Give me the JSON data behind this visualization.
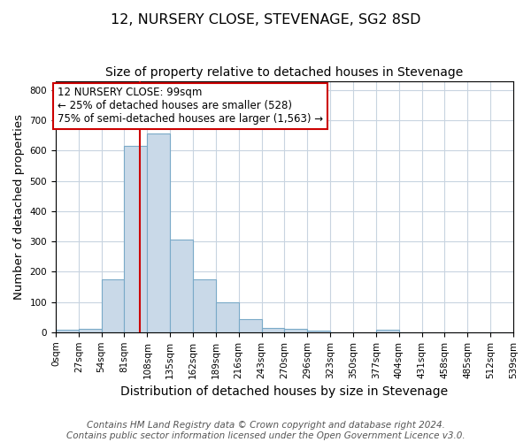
{
  "title": "12, NURSERY CLOSE, STEVENAGE, SG2 8SD",
  "subtitle": "Size of property relative to detached houses in Stevenage",
  "xlabel": "Distribution of detached houses by size in Stevenage",
  "ylabel": "Number of detached properties",
  "footnote1": "Contains HM Land Registry data © Crown copyright and database right 2024.",
  "footnote2": "Contains public sector information licensed under the Open Government Licence v3.0.",
  "bin_edges": [
    0,
    27,
    54,
    81,
    108,
    135,
    162,
    189,
    216,
    243,
    270,
    297,
    324,
    351,
    378,
    405,
    432,
    459,
    486,
    513,
    540
  ],
  "bar_heights": [
    8,
    12,
    175,
    615,
    655,
    305,
    175,
    98,
    42,
    15,
    10,
    5,
    0,
    0,
    8,
    0,
    0,
    0,
    0,
    0
  ],
  "bar_color": "#c9d9e8",
  "bar_edge_color": "#7aaac8",
  "grid_color": "#c8d4e0",
  "property_size": 99,
  "property_line_color": "#cc0000",
  "annotation_line1": "12 NURSERY CLOSE: 99sqm",
  "annotation_line2": "← 25% of detached houses are smaller (528)",
  "annotation_line3": "75% of semi-detached houses are larger (1,563) →",
  "annotation_box_color": "#ffffff",
  "annotation_border_color": "#cc0000",
  "ylim": [
    0,
    830
  ],
  "yticks": [
    0,
    100,
    200,
    300,
    400,
    500,
    600,
    700,
    800
  ],
  "bin_labels": [
    "0sqm",
    "27sqm",
    "54sqm",
    "81sqm",
    "108sqm",
    "135sqm",
    "162sqm",
    "189sqm",
    "216sqm",
    "243sqm",
    "270sqm",
    "296sqm",
    "323sqm",
    "350sqm",
    "377sqm",
    "404sqm",
    "431sqm",
    "458sqm",
    "485sqm",
    "512sqm",
    "539sqm"
  ],
  "title_fontsize": 11.5,
  "subtitle_fontsize": 10,
  "ylabel_fontsize": 9.5,
  "xlabel_fontsize": 10,
  "footnote_fontsize": 7.5,
  "tick_fontsize": 7.5,
  "annotation_fontsize": 8.5
}
